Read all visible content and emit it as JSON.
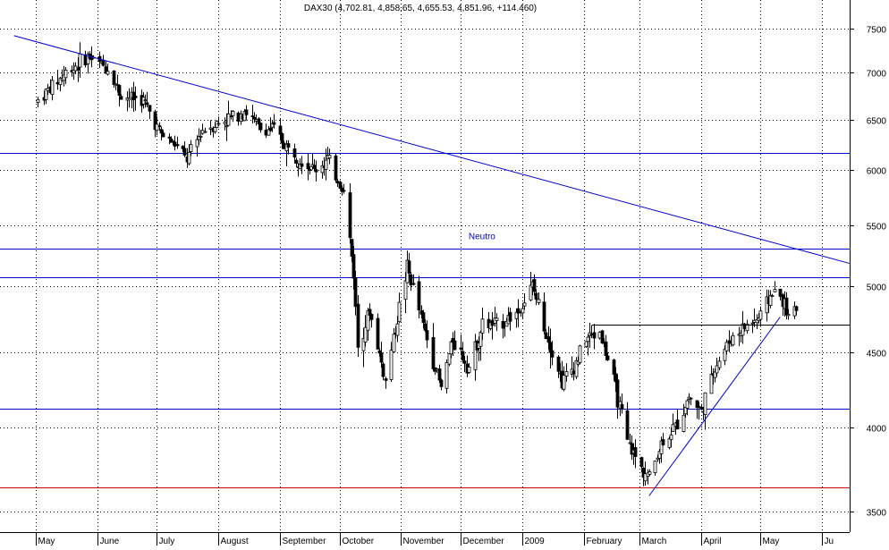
{
  "chart_data": {
    "type": "candlestick",
    "title": "DAX30 (4,702.81, 4,858.65, 4,655.53, 4,851.96, +114.460)",
    "y_scale": "log",
    "ylim": [
      3390,
      7850
    ],
    "grid": true,
    "y_ticks": [
      3500,
      4000,
      4500,
      5000,
      5500,
      6000,
      6500,
      7000,
      7500
    ],
    "y_tick_labels": [
      "3500",
      "4000",
      "4500",
      "5000",
      "5500",
      "6000",
      "6500",
      "7000",
      "7500"
    ],
    "x_start": "2008-05-01",
    "x_end": "2009-06-15",
    "month_ticks": [
      {
        "label": "May",
        "date": "2008-05-01"
      },
      {
        "label": "June",
        "date": "2008-06-01"
      },
      {
        "label": "July",
        "date": "2008-07-01"
      },
      {
        "label": "August",
        "date": "2008-08-01"
      },
      {
        "label": "September",
        "date": "2008-09-01"
      },
      {
        "label": "October",
        "date": "2008-10-01"
      },
      {
        "label": "November",
        "date": "2008-11-01"
      },
      {
        "label": "December",
        "date": "2008-12-01"
      },
      {
        "label": "2009",
        "date": "2009-01-01"
      },
      {
        "label": "February",
        "date": "2009-02-01"
      },
      {
        "label": "March",
        "date": "2009-03-01"
      },
      {
        "label": "April",
        "date": "2009-04-01"
      },
      {
        "label": "May",
        "date": "2009-05-01"
      },
      {
        "label": "Ju",
        "date": "2009-06-01"
      }
    ],
    "trend_points": [
      {
        "date": "2008-05-02",
        "close": 6700
      },
      {
        "date": "2008-05-16",
        "close": 7000
      },
      {
        "date": "2008-05-27",
        "close": 7180
      },
      {
        "date": "2008-06-06",
        "close": 7050
      },
      {
        "date": "2008-06-13",
        "close": 6750
      },
      {
        "date": "2008-06-24",
        "close": 6700
      },
      {
        "date": "2008-07-03",
        "close": 6350
      },
      {
        "date": "2008-07-10",
        "close": 6250
      },
      {
        "date": "2008-07-16",
        "close": 6100
      },
      {
        "date": "2008-07-24",
        "close": 6400
      },
      {
        "date": "2008-08-05",
        "close": 6500
      },
      {
        "date": "2008-08-14",
        "close": 6600
      },
      {
        "date": "2008-08-22",
        "close": 6400
      },
      {
        "date": "2008-08-29",
        "close": 6400
      },
      {
        "date": "2008-09-05",
        "close": 6200
      },
      {
        "date": "2008-09-12",
        "close": 6100
      },
      {
        "date": "2008-09-18",
        "close": 6000
      },
      {
        "date": "2008-09-25",
        "close": 6100
      },
      {
        "date": "2008-10-03",
        "close": 5800
      },
      {
        "date": "2008-10-08",
        "close": 5100
      },
      {
        "date": "2008-10-10",
        "close": 4550
      },
      {
        "date": "2008-10-16",
        "close": 4800
      },
      {
        "date": "2008-10-24",
        "close": 4300
      },
      {
        "date": "2008-10-28",
        "close": 4600
      },
      {
        "date": "2008-11-04",
        "close": 5150
      },
      {
        "date": "2008-11-12",
        "close": 4700
      },
      {
        "date": "2008-11-21",
        "close": 4250
      },
      {
        "date": "2008-11-27",
        "close": 4600
      },
      {
        "date": "2008-12-05",
        "close": 4400
      },
      {
        "date": "2008-12-12",
        "close": 4700
      },
      {
        "date": "2008-12-19",
        "close": 4700
      },
      {
        "date": "2008-12-30",
        "close": 4800
      },
      {
        "date": "2009-01-06",
        "close": 5000
      },
      {
        "date": "2009-01-14",
        "close": 4600
      },
      {
        "date": "2009-01-21",
        "close": 4300
      },
      {
        "date": "2009-01-27",
        "close": 4400
      },
      {
        "date": "2009-02-02",
        "close": 4600
      },
      {
        "date": "2009-02-09",
        "close": 4650
      },
      {
        "date": "2009-02-16",
        "close": 4300
      },
      {
        "date": "2009-02-23",
        "close": 3900
      },
      {
        "date": "2009-03-02",
        "close": 3750
      },
      {
        "date": "2009-03-06",
        "close": 3700
      },
      {
        "date": "2009-03-12",
        "close": 3900
      },
      {
        "date": "2009-03-19",
        "close": 4000
      },
      {
        "date": "2009-03-26",
        "close": 4200
      },
      {
        "date": "2009-04-01",
        "close": 4100
      },
      {
        "date": "2009-04-08",
        "close": 4400
      },
      {
        "date": "2009-04-16",
        "close": 4600
      },
      {
        "date": "2009-04-24",
        "close": 4700
      },
      {
        "date": "2009-04-30",
        "close": 4750
      },
      {
        "date": "2009-05-07",
        "close": 4950
      },
      {
        "date": "2009-05-12",
        "close": 4900
      },
      {
        "date": "2009-05-15",
        "close": 4750
      },
      {
        "date": "2009-05-20",
        "close": 4850
      }
    ],
    "annotations": [
      {
        "text": "Neutro",
        "date": "2008-12-05",
        "value": 5380
      }
    ],
    "horizontal_lines": [
      {
        "value": 6170,
        "color": "#0000cc"
      },
      {
        "value": 5300,
        "color": "#0000cc"
      },
      {
        "value": 5070,
        "color": "#0000cc"
      },
      {
        "value": 4120,
        "color": "#0000cc"
      },
      {
        "value": 3640,
        "color": "#cc0000"
      }
    ],
    "trend_lines": [
      {
        "start": {
          "date": "2008-04-20",
          "value": 7420
        },
        "end": {
          "date": "2009-06-15",
          "value": 5180
        },
        "color": "#0000cc"
      },
      {
        "start": {
          "date": "2009-03-06",
          "value": 3590
        },
        "end": {
          "date": "2009-05-11",
          "value": 4760
        },
        "color": "#0000cc"
      },
      {
        "start": {
          "date": "2009-02-05",
          "value": 4700
        },
        "end": {
          "date": "2009-06-15",
          "value": 4700
        },
        "color": "#000000"
      }
    ],
    "colors": {
      "grid": "#000000",
      "line_blue": "#0000cc",
      "line_red": "#cc0000",
      "up_candle": "#ffffff",
      "down_candle": "#000000"
    }
  }
}
